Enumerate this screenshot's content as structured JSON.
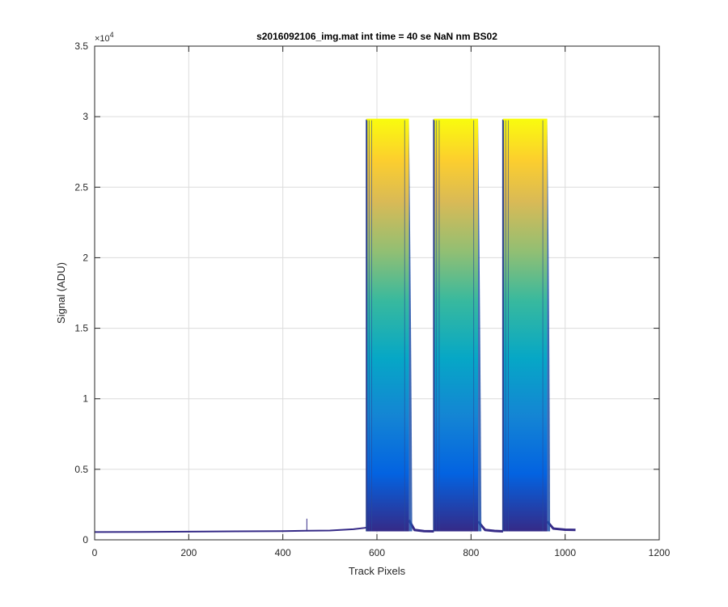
{
  "chart_data": {
    "type": "area",
    "title": "s2016092106_img.mat int time = 40 se  NaN nm BS02",
    "xlabel": "Track Pixels",
    "ylabel": "Signal (ADU)",
    "xlim": [
      0,
      1200
    ],
    "ylim": [
      0,
      35000
    ],
    "xticks": [
      0,
      200,
      400,
      600,
      800,
      1000,
      1200
    ],
    "xtick_labels": [
      "0",
      "200",
      "400",
      "600",
      "800",
      "1000",
      "1200"
    ],
    "yticks": [
      0,
      5000,
      10000,
      15000,
      20000,
      25000,
      30000,
      35000
    ],
    "ytick_labels": [
      "0",
      "0.5",
      "1",
      "1.5",
      "2",
      "2.5",
      "3",
      "3.5"
    ],
    "y_exponent_label": "×10",
    "y_exponent_power": "4",
    "grid": true,
    "colormap": [
      "#352a87",
      "#0363e1",
      "#1485d4",
      "#06a7c6",
      "#38b99e",
      "#92bf73",
      "#d9ba56",
      "#fcce2e",
      "#f9fb0e"
    ],
    "baseline": {
      "x": [
        0,
        100,
        200,
        300,
        400,
        450,
        500,
        550,
        575,
        580
      ],
      "y": [
        550,
        560,
        580,
        600,
        620,
        640,
        660,
        750,
        850,
        900
      ]
    },
    "bands": [
      {
        "x_start": 578,
        "x_end": 668,
        "tail_end": 675,
        "y_max": 29800
      },
      {
        "x_start": 721,
        "x_end": 815,
        "tail_end": 822,
        "y_max": 29800
      },
      {
        "x_start": 868,
        "x_end": 962,
        "tail_end": 968,
        "y_max": 29800
      }
    ],
    "floor_segments": [
      {
        "x": [
          668,
          680,
          700,
          721
        ],
        "y": [
          1400,
          700,
          620,
          600
        ]
      },
      {
        "x": [
          815,
          830,
          850,
          868
        ],
        "y": [
          1300,
          700,
          630,
          600
        ]
      },
      {
        "x": [
          962,
          975,
          1000,
          1022
        ],
        "y": [
          1300,
          800,
          720,
          700
        ]
      }
    ],
    "spike": {
      "x": 451,
      "y": 1500
    }
  }
}
